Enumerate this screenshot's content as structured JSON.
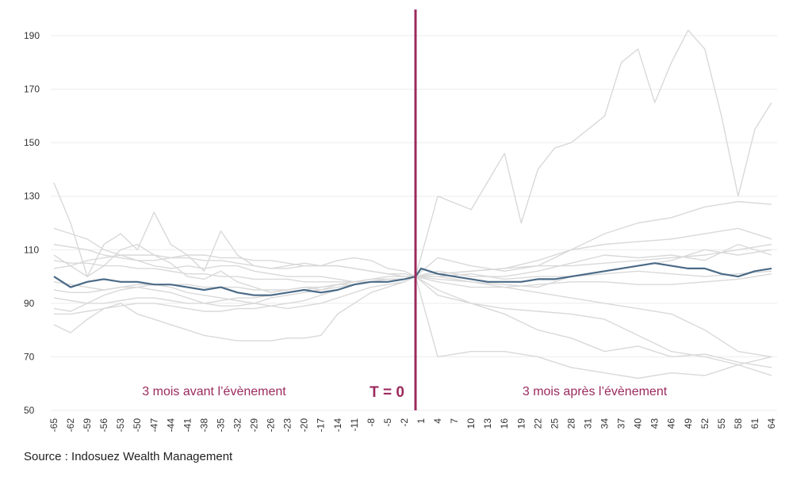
{
  "chart_data": {
    "type": "line",
    "source": "Source : Indosuez Wealth Management",
    "event_marker_label": "T = 0",
    "region_before_label": "3 mois avant l’évènement",
    "region_after_label": "3 mois après l’évènement",
    "ylim": [
      50,
      195
    ],
    "yticks": [
      50,
      70,
      90,
      110,
      130,
      150,
      170,
      190
    ],
    "xlim": [
      -65,
      65
    ],
    "xticks": [
      -65,
      -62,
      -59,
      -56,
      -53,
      -50,
      -47,
      -44,
      -41,
      -38,
      -35,
      -32,
      -29,
      -26,
      -23,
      -20,
      -17,
      -14,
      -11,
      -8,
      -5,
      -2,
      1,
      4,
      7,
      10,
      13,
      16,
      19,
      22,
      25,
      28,
      31,
      34,
      37,
      40,
      43,
      46,
      49,
      52,
      55,
      58,
      61,
      64
    ],
    "grid": "horizontal",
    "colors": {
      "event_line": "#9b2a5e",
      "average": "#4a6a86",
      "series": "#d9d9d9",
      "label": "#9b2a5e"
    },
    "average_series": {
      "x": [
        -65,
        -62,
        -59,
        -56,
        -53,
        -50,
        -47,
        -44,
        -41,
        -38,
        -35,
        -32,
        -29,
        -26,
        -23,
        -20,
        -17,
        -14,
        -11,
        -8,
        -5,
        -2,
        0,
        1,
        4,
        7,
        10,
        13,
        16,
        19,
        22,
        25,
        28,
        31,
        34,
        37,
        40,
        43,
        46,
        49,
        52,
        55,
        58,
        61,
        64
      ],
      "y": [
        100,
        96,
        98,
        99,
        98,
        98,
        97,
        97,
        96,
        95,
        96,
        94,
        93,
        93,
        94,
        95,
        94,
        95,
        97,
        98,
        98,
        99,
        100,
        103,
        101,
        100,
        99,
        98,
        98,
        98,
        99,
        99,
        100,
        101,
        102,
        103,
        104,
        105,
        104,
        103,
        103,
        101,
        100,
        102,
        103
      ]
    },
    "series": [
      {
        "x": [
          -65,
          -62,
          -59,
          -56,
          -53,
          -50,
          -47,
          -44,
          -41,
          -38,
          -35,
          -32,
          -29,
          -26,
          -23,
          -20,
          -17,
          -14,
          -11,
          -8,
          -5,
          -2,
          0,
          4,
          10,
          16,
          19,
          22,
          25,
          28,
          31,
          34,
          37,
          40,
          43,
          46,
          49,
          52,
          55,
          58,
          61,
          64
        ],
        "y": [
          135,
          120,
          100,
          104,
          110,
          112,
          108,
          105,
          100,
          99,
          102,
          98,
          96,
          94,
          95,
          96,
          95,
          97,
          98,
          99,
          100,
          100,
          100,
          130,
          125,
          146,
          120,
          140,
          148,
          150,
          155,
          160,
          180,
          185,
          165,
          180,
          192,
          185,
          160,
          130,
          155,
          165
        ]
      },
      {
        "x": [
          -65,
          -62,
          -59,
          -56,
          -53,
          -50,
          -47,
          -44,
          -41,
          -38,
          -35,
          -32,
          -29,
          -26,
          -23,
          -20,
          -17,
          -14,
          -11,
          -8,
          -5,
          -2,
          0,
          4,
          10,
          16,
          22,
          28,
          34,
          40,
          46,
          52,
          58,
          64
        ],
        "y": [
          82,
          79,
          84,
          88,
          90,
          86,
          84,
          82,
          80,
          78,
          77,
          76,
          76,
          76,
          77,
          77,
          78,
          86,
          90,
          94,
          96,
          98,
          100,
          70,
          72,
          72,
          70,
          66,
          64,
          62,
          64,
          63,
          67,
          63
        ]
      },
      {
        "x": [
          -65,
          -62,
          -59,
          -56,
          -53,
          -50,
          -47,
          -44,
          -41,
          -38,
          -35,
          -32,
          -29,
          -26,
          -23,
          -20,
          -17,
          -14,
          -11,
          -8,
          -5,
          -2,
          0,
          4,
          10,
          16,
          22,
          28,
          34,
          40,
          46,
          52,
          58,
          64
        ],
        "y": [
          118,
          116,
          114,
          110,
          108,
          106,
          104,
          103,
          104,
          103,
          104,
          104,
          102,
          101,
          100,
          100,
          100,
          99,
          98,
          99,
          99,
          99,
          100,
          93,
          90,
          86,
          80,
          77,
          72,
          74,
          70,
          71,
          68,
          66
        ]
      },
      {
        "x": [
          -65,
          -62,
          -59,
          -56,
          -53,
          -50,
          -47,
          -44,
          -41,
          -38,
          -35,
          -32,
          -29,
          -26,
          -23,
          -20,
          -17,
          -14,
          -11,
          -8,
          -5,
          -2,
          0,
          4,
          10,
          16,
          22,
          28,
          34,
          40,
          46,
          52,
          58,
          64
        ],
        "y": [
          108,
          104,
          100,
          112,
          116,
          110,
          124,
          112,
          108,
          102,
          117,
          108,
          104,
          103,
          104,
          105,
          104,
          106,
          107,
          106,
          103,
          102,
          100,
          107,
          104,
          102,
          104,
          110,
          116,
          120,
          122,
          126,
          128,
          127
        ]
      },
      {
        "x": [
          -65,
          -62,
          -59,
          -56,
          -53,
          -50,
          -47,
          -44,
          -41,
          -38,
          -35,
          -32,
          -29,
          -26,
          -23,
          -20,
          -17,
          -14,
          -11,
          -8,
          -5,
          -2,
          0,
          4,
          10,
          16,
          22,
          28,
          34,
          40,
          46,
          52,
          58,
          64
        ],
        "y": [
          88,
          87,
          90,
          93,
          95,
          96,
          95,
          94,
          92,
          90,
          89,
          89,
          90,
          92,
          93,
          94,
          95,
          96,
          97,
          98,
          98,
          99,
          100,
          101,
          102,
          103,
          106,
          110,
          112,
          113,
          114,
          116,
          118,
          114
        ]
      },
      {
        "x": [
          -65,
          -62,
          -59,
          -56,
          -53,
          -50,
          -47,
          -44,
          -41,
          -38,
          -35,
          -32,
          -29,
          -26,
          -23,
          -20,
          -17,
          -14,
          -11,
          -8,
          -5,
          -2,
          0,
          4,
          10,
          16,
          22,
          28,
          34,
          40,
          46,
          52,
          58,
          64
        ],
        "y": [
          103,
          104,
          106,
          107,
          108,
          108,
          108,
          107,
          107,
          106,
          106,
          105,
          104,
          103,
          103,
          104,
          104,
          104,
          103,
          102,
          101,
          101,
          100,
          102,
          100,
          100,
          102,
          105,
          108,
          107,
          108,
          106,
          112,
          108
        ]
      },
      {
        "x": [
          -65,
          -62,
          -59,
          -56,
          -53,
          -50,
          -47,
          -44,
          -41,
          -38,
          -35,
          -32,
          -29,
          -26,
          -23,
          -20,
          -17,
          -14,
          -11,
          -8,
          -5,
          -2,
          0,
          4,
          10,
          16,
          22,
          28,
          34,
          40,
          46,
          52,
          58,
          64
        ],
        "y": [
          92,
          91,
          90,
          90,
          91,
          92,
          92,
          91,
          90,
          90,
          91,
          92,
          92,
          93,
          94,
          95,
          96,
          97,
          98,
          98,
          99,
          99,
          100,
          99,
          98,
          97,
          96,
          100,
          102,
          104,
          106,
          110,
          108,
          110
        ]
      },
      {
        "x": [
          -65,
          -62,
          -59,
          -56,
          -53,
          -50,
          -47,
          -44,
          -41,
          -38,
          -35,
          -32,
          -29,
          -26,
          -23,
          -20,
          -17,
          -14,
          -11,
          -8,
          -5,
          -2,
          0,
          4,
          10,
          16,
          22,
          28,
          34,
          40,
          46,
          52,
          58,
          64
        ],
        "y": [
          98,
          97,
          96,
          95,
          96,
          97,
          97,
          96,
          94,
          93,
          92,
          91,
          90,
          89,
          88,
          89,
          90,
          92,
          94,
          96,
          97,
          98,
          100,
          95,
          90,
          88,
          87,
          86,
          84,
          78,
          72,
          70,
          67,
          70
        ]
      },
      {
        "x": [
          -65,
          -62,
          -59,
          -56,
          -53,
          -50,
          -47,
          -44,
          -41,
          -38,
          -35,
          -32,
          -29,
          -26,
          -23,
          -20,
          -17,
          -14,
          -11,
          -8,
          -5,
          -2,
          0,
          4,
          10,
          16,
          22,
          28,
          34,
          40,
          46,
          52,
          58,
          64
        ],
        "y": [
          112,
          111,
          110,
          108,
          107,
          106,
          106,
          107,
          108,
          108,
          107,
          107,
          106,
          106,
          105,
          104,
          104,
          104,
          103,
          102,
          101,
          100,
          100,
          100,
          101,
          99,
          100,
          100,
          101,
          102,
          101,
          100,
          101,
          102
        ]
      },
      {
        "x": [
          -65,
          -62,
          -59,
          -56,
          -53,
          -50,
          -47,
          -44,
          -41,
          -38,
          -35,
          -32,
          -29,
          -26,
          -23,
          -20,
          -17,
          -14,
          -11,
          -8,
          -5,
          -2,
          0,
          4,
          10,
          16,
          22,
          28,
          34,
          40,
          46,
          52,
          58,
          64
        ],
        "y": [
          95,
          94,
          94,
          95,
          96,
          96,
          97,
          97,
          97,
          96,
          96,
          96,
          95,
          95,
          95,
          96,
          96,
          97,
          97,
          98,
          98,
          99,
          100,
          98,
          96,
          96,
          97,
          98,
          98,
          97,
          97,
          98,
          99,
          101
        ]
      },
      {
        "x": [
          -65,
          -62,
          -59,
          -56,
          -53,
          -50,
          -47,
          -44,
          -41,
          -38,
          -35,
          -32,
          -29,
          -26,
          -23,
          -20,
          -17,
          -14,
          -11,
          -8,
          -5,
          -2,
          0,
          4,
          10,
          16,
          22,
          28,
          34,
          40,
          46,
          52,
          58,
          64
        ],
        "y": [
          86,
          86,
          87,
          88,
          89,
          90,
          90,
          89,
          88,
          87,
          87,
          88,
          88,
          89,
          90,
          91,
          93,
          95,
          97,
          98,
          99,
          99,
          100,
          100,
          98,
          96,
          94,
          92,
          90,
          88,
          86,
          80,
          72,
          70
        ]
      },
      {
        "x": [
          -65,
          -62,
          -59,
          -56,
          -53,
          -50,
          -47,
          -44,
          -41,
          -38,
          -35,
          -32,
          -29,
          -26,
          -23,
          -20,
          -17,
          -14,
          -11,
          -8,
          -5,
          -2,
          0,
          4,
          10,
          16,
          22,
          28,
          34,
          40,
          46,
          52,
          58,
          64
        ],
        "y": [
          106,
          105,
          105,
          104,
          104,
          103,
          103,
          102,
          101,
          101,
          100,
          100,
          99,
          99,
          99,
          98,
          98,
          98,
          98,
          99,
          99,
          99,
          100,
          101,
          102,
          103,
          104,
          104,
          105,
          106,
          107,
          108,
          110,
          112
        ]
      }
    ]
  }
}
